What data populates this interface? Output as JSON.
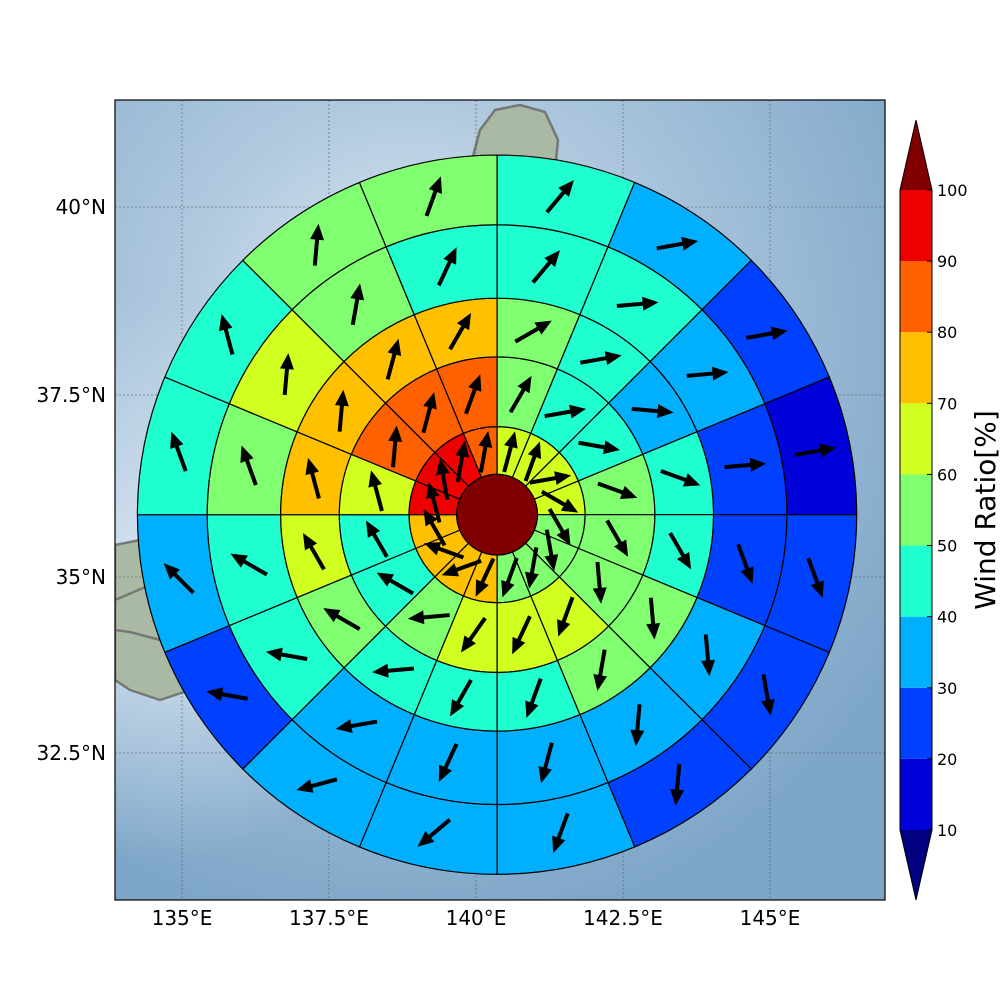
{
  "chart_data": {
    "type": "heatmap",
    "subtype": "polar-sector-wind-map",
    "map": {
      "xlim": [
        133.9,
        147.0
      ],
      "ylim": [
        30.5,
        41.4
      ],
      "xticks": [
        135,
        137.5,
        140,
        142.5,
        145
      ],
      "xtick_labels": [
        "135°E",
        "137.5°E",
        "140°E",
        "142.5°E",
        "145°E"
      ],
      "yticks": [
        32.5,
        35,
        37.5,
        40
      ],
      "ytick_labels": [
        "32.5°N",
        "35°N",
        "37.5°N",
        "40°N"
      ],
      "grid": true,
      "background": "shaded relief map (land green-grey, ocean blue)"
    },
    "center": {
      "lon": 140.4,
      "lat": 35.75
    },
    "colorbar": {
      "label": "Wind Ratio[%]",
      "bounds": [
        10,
        20,
        30,
        40,
        50,
        60,
        70,
        80,
        90,
        100
      ],
      "tick_labels": [
        "10",
        "20",
        "30",
        "40",
        "50",
        "60",
        "70",
        "80",
        "90",
        "100"
      ],
      "colors": [
        "#0000d8",
        "#0040ff",
        "#00b0ff",
        "#20ffd0",
        "#80ff70",
        "#d0ff20",
        "#ffc000",
        "#ff6000",
        "#ee0000"
      ],
      "under_color": "#000080",
      "over_color": "#800000",
      "extend": "both"
    },
    "center_value": 105,
    "rings": [
      {
        "radius_deg": 1.2,
        "values": [
          65,
          65,
          65,
          65,
          55,
          55,
          55,
          55,
          75,
          75,
          75,
          75,
          92,
          92,
          92,
          85
        ]
      },
      {
        "radius_deg": 2.15,
        "values": [
          55,
          45,
          45,
          55,
          50,
          55,
          60,
          65,
          62,
          55,
          45,
          45,
          62,
          85,
          85,
          85
        ]
      },
      {
        "radius_deg": 2.95,
        "values": [
          55,
          45,
          38,
          45,
          45,
          50,
          50,
          45,
          42,
          45,
          52,
          62,
          72,
          72,
          75,
          75
        ]
      },
      {
        "radius_deg": 3.95,
        "values": [
          45,
          45,
          35,
          28,
          25,
          32,
          35,
          35,
          35,
          35,
          42,
          48,
          55,
          62,
          55,
          48
        ]
      },
      {
        "radius_deg": 4.9,
        "values": [
          45,
          35,
          25,
          15,
          28,
          25,
          28,
          38,
          35,
          32,
          25,
          38,
          45,
          48,
          50,
          55
        ]
      }
    ],
    "arrows_note": "one black wind arrow per sector; direction angle in degrees clockwise from north",
    "arrow_dirs": [
      [
        15,
        20,
        80,
        120,
        150,
        170,
        190,
        200,
        205,
        250,
        290,
        330,
        345,
        350,
        10,
        10
      ],
      [
        30,
        80,
        100,
        110,
        150,
        175,
        200,
        205,
        215,
        265,
        300,
        330,
        345,
        5,
        15,
        20
      ],
      [
        60,
        80,
        95,
        110,
        150,
        175,
        190,
        200,
        210,
        265,
        300,
        330,
        345,
        5,
        15,
        30
      ],
      [
        40,
        85,
        85,
        85,
        160,
        175,
        185,
        195,
        205,
        260,
        280,
        300,
        340,
        5,
        10,
        25
      ],
      [
        40,
        80,
        80,
        80,
        160,
        170,
        185,
        200,
        230,
        255,
        280,
        315,
        340,
        345,
        5,
        20
      ]
    ]
  }
}
